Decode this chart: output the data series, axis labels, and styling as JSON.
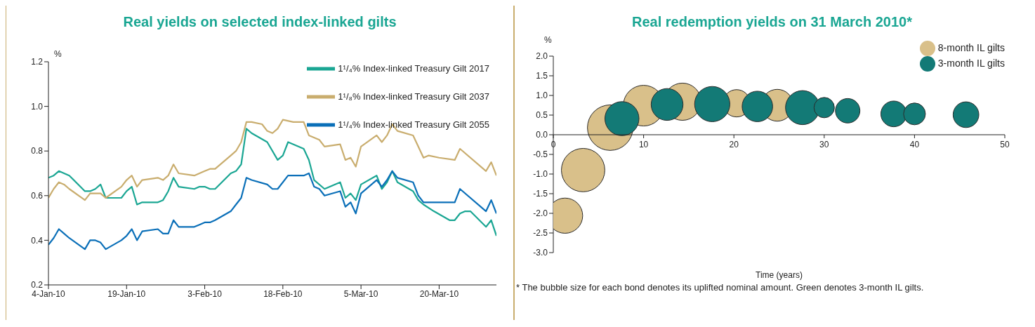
{
  "chart_data": [
    {
      "type": "line",
      "title": "Real yields on selected index-linked gilts",
      "ylabel": "%",
      "legend": "top right",
      "marker": "none",
      "xlim": [
        "2010-01-04",
        "2010-03-31"
      ],
      "xticks": [
        {
          "value": "2010-01-04",
          "label": "4-Jan-10"
        },
        {
          "value": "2010-01-19",
          "label": "19-Jan-10"
        },
        {
          "value": "2010-02-03",
          "label": "3-Feb-10"
        },
        {
          "value": "2010-02-18",
          "label": "18-Feb-10"
        },
        {
          "value": "2010-03-05",
          "label": "5-Mar-10"
        },
        {
          "value": "2010-03-20",
          "label": "20-Mar-10"
        }
      ],
      "ylim": [
        0.2,
        1.2
      ],
      "yticks": [
        0.2,
        0.4,
        0.6,
        0.8,
        {
          "value": 1,
          "label": "1.0"
        },
        1.2
      ],
      "series": [
        {
          "name": "1¹/₄% Index-linked Treasury Gilt 2017",
          "color": "#1aa693",
          "x": [
            "2010-01-04",
            "2010-01-05",
            "2010-01-06",
            "2010-01-07",
            "2010-01-08",
            "2010-01-11",
            "2010-01-12",
            "2010-01-13",
            "2010-01-14",
            "2010-01-15",
            "2010-01-18",
            "2010-01-19",
            "2010-01-20",
            "2010-01-21",
            "2010-01-22",
            "2010-01-25",
            "2010-01-26",
            "2010-01-27",
            "2010-01-28",
            "2010-01-29",
            "2010-02-01",
            "2010-02-02",
            "2010-02-03",
            "2010-02-04",
            "2010-02-05",
            "2010-02-08",
            "2010-02-09",
            "2010-02-10",
            "2010-02-11",
            "2010-02-12",
            "2010-02-15",
            "2010-02-17",
            "2010-02-18",
            "2010-02-19",
            "2010-02-22",
            "2010-02-23",
            "2010-02-24",
            "2010-02-26",
            "2010-03-01",
            "2010-03-02",
            "2010-03-03",
            "2010-03-04",
            "2010-03-05",
            "2010-03-08",
            "2010-03-09",
            "2010-03-10",
            "2010-03-11",
            "2010-03-12",
            "2010-03-15",
            "2010-03-16",
            "2010-03-17",
            "2010-03-19",
            "2010-03-22",
            "2010-03-23",
            "2010-03-24",
            "2010-03-25",
            "2010-03-26",
            "2010-03-29",
            "2010-03-30",
            "2010-03-31"
          ],
          "values": [
            0.68,
            0.69,
            0.71,
            0.7,
            0.69,
            0.62,
            0.62,
            0.63,
            0.65,
            0.59,
            0.59,
            0.62,
            0.64,
            0.56,
            0.57,
            0.57,
            0.58,
            0.62,
            0.68,
            0.64,
            0.63,
            0.64,
            0.64,
            0.63,
            0.63,
            0.7,
            0.71,
            0.74,
            0.9,
            0.88,
            0.84,
            0.76,
            0.78,
            0.84,
            0.81,
            0.76,
            0.67,
            0.63,
            0.66,
            0.59,
            0.61,
            0.58,
            0.65,
            0.69,
            0.63,
            0.66,
            0.71,
            0.66,
            0.62,
            0.58,
            0.56,
            0.53,
            0.49,
            0.49,
            0.52,
            0.53,
            0.53,
            0.46,
            0.49,
            0.42
          ]
        },
        {
          "name": "1¹/₈% Index-linked Treasury Gilt 2037",
          "color": "#c9ad6e",
          "x": [
            "2010-01-04",
            "2010-01-05",
            "2010-01-06",
            "2010-01-07",
            "2010-01-08",
            "2010-01-11",
            "2010-01-12",
            "2010-01-13",
            "2010-01-14",
            "2010-01-15",
            "2010-01-18",
            "2010-01-19",
            "2010-01-20",
            "2010-01-21",
            "2010-01-22",
            "2010-01-25",
            "2010-01-26",
            "2010-01-27",
            "2010-01-28",
            "2010-01-29",
            "2010-02-01",
            "2010-02-02",
            "2010-02-03",
            "2010-02-04",
            "2010-02-05",
            "2010-02-08",
            "2010-02-09",
            "2010-02-10",
            "2010-02-11",
            "2010-02-12",
            "2010-02-14",
            "2010-02-15",
            "2010-02-16",
            "2010-02-17",
            "2010-02-18",
            "2010-02-20",
            "2010-02-22",
            "2010-02-23",
            "2010-02-25",
            "2010-02-26",
            "2010-03-01",
            "2010-03-02",
            "2010-03-03",
            "2010-03-04",
            "2010-03-05",
            "2010-03-08",
            "2010-03-09",
            "2010-03-10",
            "2010-03-11",
            "2010-03-12",
            "2010-03-15",
            "2010-03-17",
            "2010-03-18",
            "2010-03-20",
            "2010-03-23",
            "2010-03-24",
            "2010-03-29",
            "2010-03-30",
            "2010-03-31"
          ],
          "values": [
            0.59,
            0.63,
            0.66,
            0.65,
            0.63,
            0.58,
            0.61,
            0.61,
            0.61,
            0.59,
            0.64,
            0.67,
            0.69,
            0.64,
            0.67,
            0.68,
            0.67,
            0.69,
            0.74,
            0.7,
            0.69,
            0.7,
            0.71,
            0.72,
            0.72,
            0.78,
            0.8,
            0.84,
            0.93,
            0.93,
            0.92,
            0.89,
            0.88,
            0.9,
            0.94,
            0.93,
            0.93,
            0.87,
            0.85,
            0.82,
            0.83,
            0.76,
            0.77,
            0.73,
            0.82,
            0.87,
            0.84,
            0.87,
            0.92,
            0.89,
            0.87,
            0.77,
            0.78,
            0.77,
            0.76,
            0.81,
            0.71,
            0.75,
            0.69
          ]
        },
        {
          "name": "1¹/₄% Index-linked Treasury Gilt 2055",
          "color": "#0a6fb8",
          "x": [
            "2010-01-04",
            "2010-01-05",
            "2010-01-06",
            "2010-01-07",
            "2010-01-08",
            "2010-01-11",
            "2010-01-12",
            "2010-01-13",
            "2010-01-14",
            "2010-01-15",
            "2010-01-18",
            "2010-01-19",
            "2010-01-20",
            "2010-01-21",
            "2010-01-22",
            "2010-01-25",
            "2010-01-26",
            "2010-01-27",
            "2010-01-28",
            "2010-01-29",
            "2010-02-01",
            "2010-02-02",
            "2010-02-03",
            "2010-02-04",
            "2010-02-05",
            "2010-02-08",
            "2010-02-09",
            "2010-02-10",
            "2010-02-11",
            "2010-02-12",
            "2010-02-15",
            "2010-02-16",
            "2010-02-17",
            "2010-02-19",
            "2010-02-22",
            "2010-02-23",
            "2010-02-24",
            "2010-02-25",
            "2010-02-26",
            "2010-03-01",
            "2010-03-02",
            "2010-03-03",
            "2010-03-04",
            "2010-03-05",
            "2010-03-08",
            "2010-03-09",
            "2010-03-10",
            "2010-03-11",
            "2010-03-12",
            "2010-03-15",
            "2010-03-16",
            "2010-03-17",
            "2010-03-18",
            "2010-03-22",
            "2010-03-23",
            "2010-03-24",
            "2010-03-29",
            "2010-03-30",
            "2010-03-31"
          ],
          "values": [
            0.38,
            0.41,
            0.45,
            0.43,
            0.41,
            0.36,
            0.4,
            0.4,
            0.39,
            0.36,
            0.4,
            0.42,
            0.45,
            0.4,
            0.44,
            0.45,
            0.43,
            0.43,
            0.49,
            0.46,
            0.46,
            0.47,
            0.48,
            0.48,
            0.49,
            0.53,
            0.56,
            0.59,
            0.68,
            0.67,
            0.65,
            0.63,
            0.63,
            0.69,
            0.69,
            0.7,
            0.64,
            0.63,
            0.6,
            0.62,
            0.55,
            0.57,
            0.52,
            0.61,
            0.67,
            0.64,
            0.67,
            0.71,
            0.68,
            0.66,
            0.6,
            0.57,
            0.57,
            0.57,
            0.57,
            0.63,
            0.53,
            0.58,
            0.52
          ]
        }
      ]
    },
    {
      "type": "bubble",
      "title": "Real redemption yields on 31 March 2010*",
      "ylabel": "%",
      "xlabel": "Time (years)",
      "legend": "top right",
      "annotations": [
        "* The bubble size for each bond denotes its uplifted nominal amount. Green denotes 3-month IL gilts."
      ],
      "xlim": [
        0,
        50
      ],
      "xticks": [
        0,
        10,
        20,
        30,
        40,
        50
      ],
      "ylim": [
        -3,
        2
      ],
      "yticks": [
        {
          "value": 2,
          "label": "2.0"
        },
        1.5,
        {
          "value": 1,
          "label": "1.0"
        },
        0.5,
        {
          "value": 0,
          "label": "0.0"
        },
        -0.5,
        {
          "value": -1,
          "label": "-1.0"
        },
        -1.5,
        {
          "value": -2,
          "label": "-2.0"
        },
        -2.5,
        {
          "value": -3,
          "label": "-3.0"
        }
      ],
      "series": [
        {
          "name": "8-month IL gilts",
          "color": "#d9c08a",
          "x": [
            1.3,
            3.3,
            6.3,
            10.0,
            14.3,
            20.3,
            24.8
          ],
          "values": [
            -2.06,
            -0.9,
            0.18,
            0.74,
            0.84,
            0.8,
            0.75
          ],
          "sizes": [
            0.6,
            0.91,
            1,
            0.8,
            0.67,
            0.36,
            0.49
          ]
        },
        {
          "name": "3-month IL gilts",
          "color": "#137a76",
          "x": [
            7.6,
            12.6,
            17.6,
            22.6,
            27.6,
            30.0,
            32.6,
            37.7,
            40.0,
            45.7
          ],
          "values": [
            0.41,
            0.77,
            0.78,
            0.72,
            0.69,
            0.69,
            0.61,
            0.53,
            0.53,
            0.51
          ],
          "sizes": [
            0.56,
            0.49,
            0.6,
            0.45,
            0.56,
            0.2,
            0.29,
            0.32,
            0.23,
            0.32
          ]
        }
      ]
    }
  ]
}
